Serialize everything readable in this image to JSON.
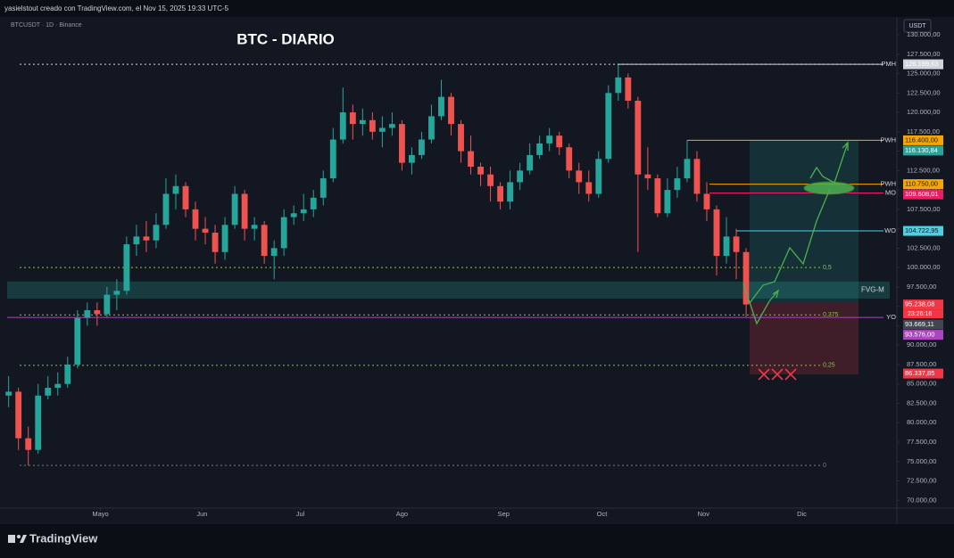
{
  "header": "yasielstout creado con TradingView.com, el Nov 15, 2025 19:33 UTC-5",
  "chart_data": {
    "type": "candlestick",
    "title": "BTC - DIARIO",
    "symbol": "BTCUSDT · 1D · Binance",
    "currency": "USDT",
    "x": [
      2,
      5,
      8,
      11,
      14,
      17,
      20,
      23,
      26,
      29,
      32,
      35,
      38,
      41,
      44,
      47,
      50,
      53,
      56,
      59,
      62,
      65,
      68,
      71,
      74,
      77,
      80,
      83,
      86,
      89,
      92,
      95,
      98,
      101,
      104,
      107,
      110,
      113,
      116,
      119,
      122,
      125,
      128,
      131,
      134,
      137,
      140,
      143,
      146,
      149,
      152,
      155,
      158,
      161,
      164,
      167,
      170,
      173,
      176,
      179,
      182,
      185,
      188,
      191,
      194,
      197,
      200,
      203,
      206,
      209,
      212,
      215,
      218,
      221,
      224,
      227
    ],
    "open": [
      83500,
      84000,
      78000,
      76500,
      83500,
      84500,
      85000,
      87500,
      93500,
      94500,
      94000,
      96500,
      97000,
      103000,
      104000,
      103500,
      105500,
      109500,
      110500,
      107500,
      105000,
      104500,
      102000,
      105500,
      109500,
      105000,
      105500,
      101500,
      102500,
      106500,
      107000,
      107500,
      109000,
      111500,
      116500,
      120000,
      118500,
      119000,
      117500,
      118000,
      118500,
      113500,
      114500,
      116500,
      119500,
      122000,
      118500,
      115000,
      113000,
      112000,
      110500,
      108500,
      111000,
      112500,
      114500,
      116000,
      117000,
      115500,
      112500,
      111000,
      109500,
      114000,
      122500,
      124500,
      121500,
      112000,
      111500,
      107000,
      110000,
      111500,
      114000,
      109500,
      107500,
      101500,
      104000,
      102000
    ],
    "high": [
      86000,
      84500,
      79500,
      85000,
      86000,
      86500,
      88500,
      94500,
      95500,
      95500,
      97500,
      98500,
      104000,
      105500,
      106000,
      107000,
      111500,
      112000,
      111000,
      108500,
      106500,
      105500,
      106500,
      110500,
      110000,
      106500,
      106000,
      103500,
      107500,
      108000,
      109500,
      110000,
      112500,
      118000,
      123200,
      121000,
      120500,
      120000,
      119500,
      120000,
      119000,
      115500,
      117500,
      121000,
      124200,
      122500,
      119000,
      117000,
      113500,
      113000,
      111000,
      112500,
      113500,
      116000,
      117000,
      118000,
      117500,
      116000,
      113500,
      112500,
      115000,
      123500,
      126199.63,
      125000,
      122000,
      115500,
      112000,
      111500,
      113000,
      116400,
      115000,
      111000,
      108000,
      106500,
      105000,
      102500
    ],
    "low": [
      82000,
      76500,
      74500,
      76000,
      83000,
      83500,
      84500,
      87000,
      92500,
      92500,
      93500,
      94500,
      96500,
      101500,
      102000,
      102500,
      105000,
      107500,
      106500,
      103500,
      103000,
      100500,
      101000,
      105000,
      103500,
      103500,
      100500,
      98500,
      101500,
      105500,
      106000,
      106500,
      108000,
      111000,
      116000,
      116500,
      117000,
      116500,
      115500,
      117000,
      112500,
      112000,
      114000,
      116000,
      119000,
      117000,
      113500,
      112000,
      110500,
      108500,
      107500,
      107500,
      110000,
      112000,
      114000,
      115000,
      114500,
      111500,
      109500,
      108500,
      109000,
      113500,
      121500,
      120500,
      102000,
      110000,
      106500,
      106500,
      109000,
      111000,
      108500,
      106000,
      99000,
      100500,
      98500,
      93669.11
    ],
    "close": [
      84000,
      78000,
      76500,
      83500,
      84500,
      85000,
      87500,
      93500,
      94500,
      94000,
      96500,
      97000,
      103000,
      104000,
      103500,
      105500,
      109500,
      110500,
      107500,
      105000,
      104500,
      102000,
      105500,
      109500,
      105000,
      105500,
      101500,
      102500,
      106500,
      107000,
      107500,
      109000,
      111500,
      116500,
      120000,
      118500,
      119000,
      117500,
      118000,
      118500,
      113500,
      114500,
      116500,
      119500,
      122000,
      118500,
      115000,
      113000,
      112000,
      110500,
      108500,
      111000,
      112500,
      114500,
      116000,
      117000,
      115500,
      112500,
      111000,
      109500,
      114000,
      122500,
      124500,
      121500,
      112000,
      111500,
      107000,
      110000,
      111500,
      114000,
      109500,
      107500,
      101500,
      104000,
      102000,
      95238.08
    ],
    "up_color": "#26a69a",
    "down_color": "#ef5350",
    "xlim": [
      1,
      273
    ],
    "xticks": [
      {
        "value": 30,
        "label": "Mayo"
      },
      {
        "value": 61,
        "label": "Jun"
      },
      {
        "value": 91,
        "label": "Jul"
      },
      {
        "value": 122,
        "label": "Ago"
      },
      {
        "value": 153,
        "label": "Sep"
      },
      {
        "value": 183,
        "label": "Oct"
      },
      {
        "value": 214,
        "label": "Nov"
      },
      {
        "value": 244,
        "label": "Dic"
      }
    ],
    "ylim": [
      69000,
      132300
    ],
    "yticks": [
      {
        "value": 70000,
        "label": "70.000,00"
      },
      {
        "value": 72500,
        "label": "72.500,00"
      },
      {
        "value": 75000,
        "label": "75.000,00"
      },
      {
        "value": 77500,
        "label": "77.500,00"
      },
      {
        "value": 80000,
        "label": "80.000,00"
      },
      {
        "value": 82500,
        "label": "82.500,00"
      },
      {
        "value": 85000,
        "label": "85.000,00"
      },
      {
        "value": 87500,
        "label": "87.500,00"
      },
      {
        "value": 90000,
        "label": "90.000,00"
      },
      {
        "value": 92500,
        "label": "92.500,00"
      },
      {
        "value": 95000,
        "label": "95.000,00"
      },
      {
        "value": 97500,
        "label": "97.500,00"
      },
      {
        "value": 100000,
        "label": "100.000,00"
      },
      {
        "value": 102500,
        "label": "102.500,00"
      },
      {
        "value": 105000,
        "label": "105.000,00"
      },
      {
        "value": 107500,
        "label": "107.500,00"
      },
      {
        "value": 110000,
        "label": "110.000,00"
      },
      {
        "value": 112500,
        "label": "112.500,00"
      },
      {
        "value": 115000,
        "label": "115.000,00"
      },
      {
        "value": 117500,
        "label": "117.500,00"
      },
      {
        "value": 120000,
        "label": "120.000,00"
      },
      {
        "value": 122500,
        "label": "122.500,00"
      },
      {
        "value": 125000,
        "label": "125.000,00"
      },
      {
        "value": 127500,
        "label": "127.500,00"
      },
      {
        "value": 130000,
        "label": "130.000,00"
      }
    ],
    "grid": false,
    "levels": [
      {
        "name": "PMH",
        "value": 126199.63,
        "value_label": "126.199,63",
        "color": "#d1d4dc"
      },
      {
        "name": "PWH",
        "value": 116400,
        "value_label": "116.400,00",
        "color": "#f7a600"
      },
      {
        "name": "PWH",
        "value": 110750,
        "value_label": "110.750,00",
        "color": "#f7a600"
      },
      {
        "name": "MO",
        "value": 109608.01,
        "value_label": "109.608,01",
        "color": "#e91e63"
      },
      {
        "name": "WO",
        "value": 104722.95,
        "value_label": "104.722,95",
        "color": "#4dd0e1"
      },
      {
        "name": "YO",
        "value": 93576,
        "value_label": "93.576,00",
        "color": "#ab47bc"
      }
    ],
    "fib_levels": [
      {
        "label": "0,5",
        "value": 100000,
        "color": "#8bc34a"
      },
      {
        "label": "0,375",
        "value": 93900,
        "color": "#8bc34a"
      },
      {
        "label": "0,25",
        "value": 87400,
        "color": "#8bc34a"
      },
      {
        "label": "0",
        "value": 74500,
        "color": "#787b86"
      }
    ],
    "zone": {
      "name": "FVG-M",
      "low": 96000,
      "high": 98200,
      "color": "#26a69a"
    },
    "price_labels": [
      {
        "value": 116130.84,
        "label": "116.130,84",
        "color": "#26a69a"
      },
      {
        "value": 95238.08,
        "label": "95.238,08",
        "color": "#f23645"
      },
      {
        "value": 93669.11,
        "label": "93.669,11",
        "color": "#434651"
      },
      {
        "value": 86337.85,
        "label": "86.337,85",
        "color": "#f23645"
      }
    ],
    "countdown": "23:26:16"
  },
  "footer": "TradingView"
}
